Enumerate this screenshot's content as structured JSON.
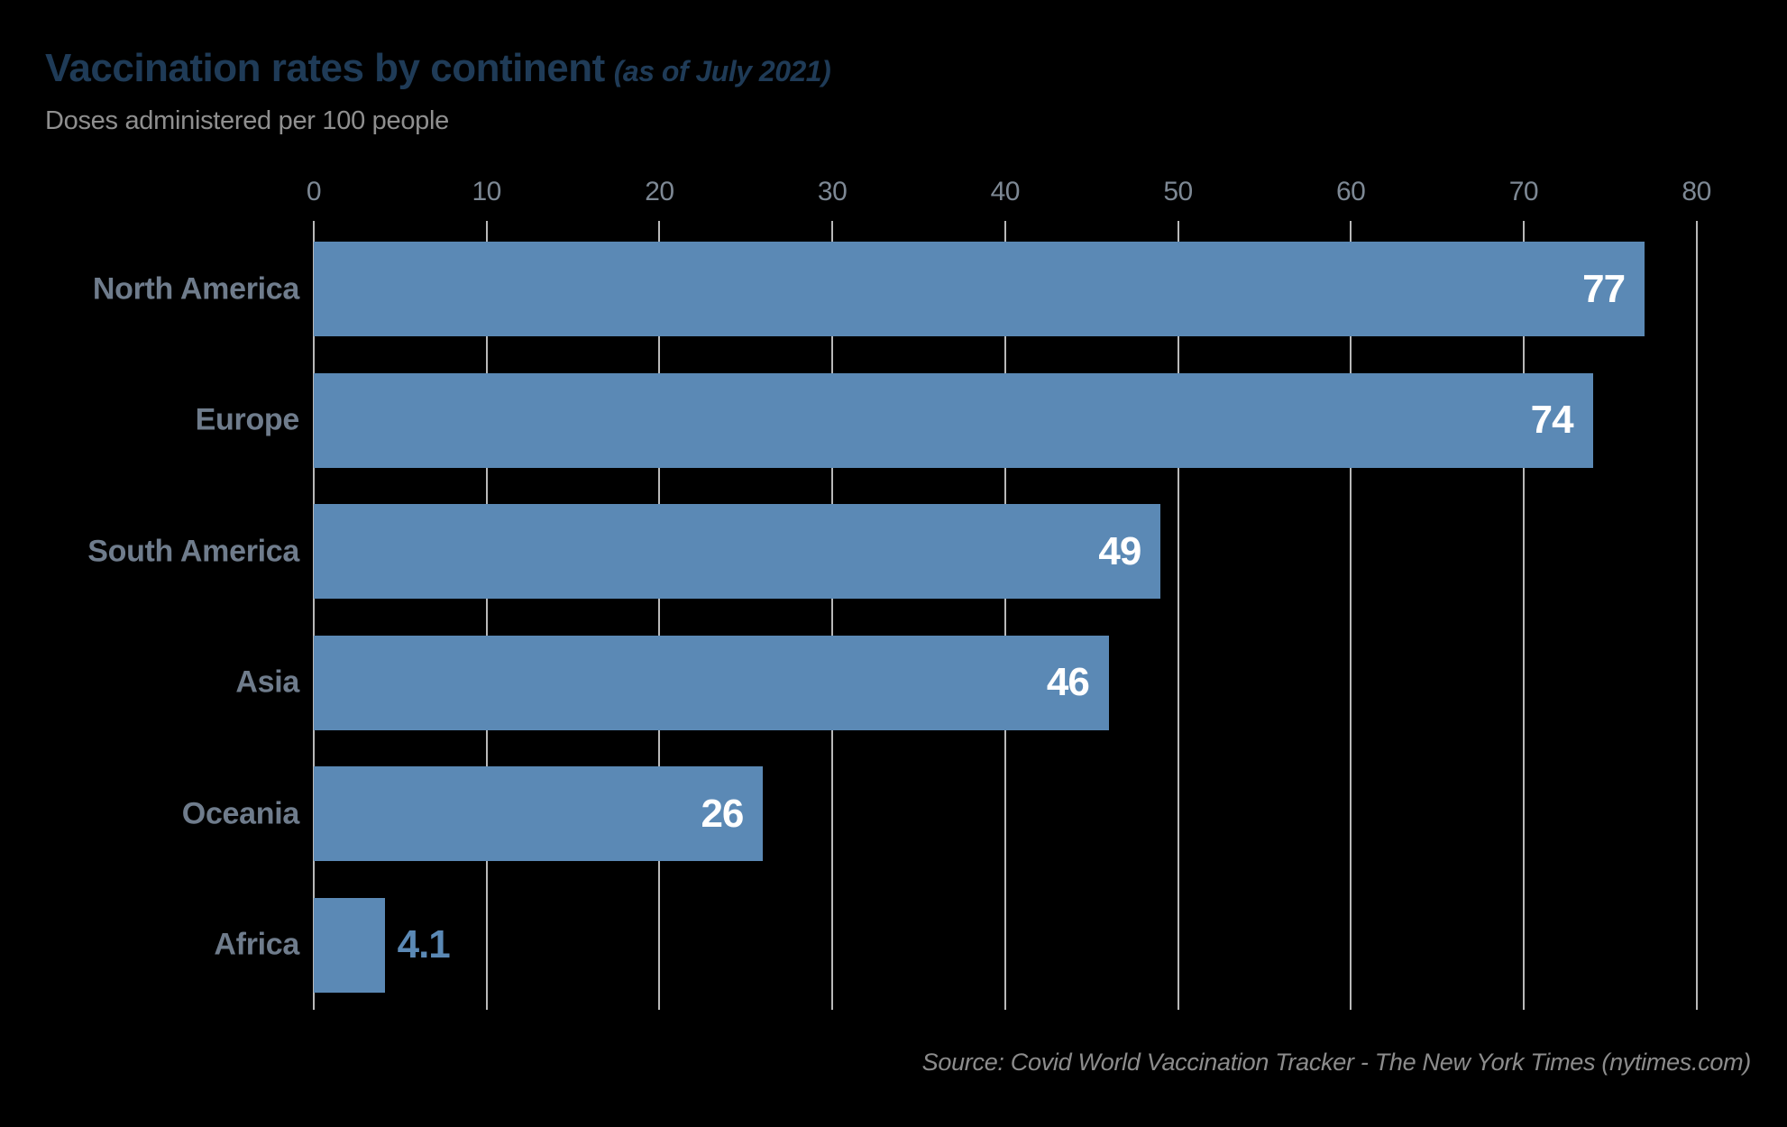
{
  "header": {
    "title": "Vaccination rates by continent",
    "title_suffix": "(as of July 2021)",
    "subtitle": "Doses administered per 100 people"
  },
  "footer": {
    "source": "Source: Covid World Vaccination Tracker - The New York Times (nytimes.com)"
  },
  "colors": {
    "background": "#000000",
    "bar": "#5b89b5",
    "title": "#1f3b57",
    "subtitle": "#8f8f8f",
    "category_label": "#6f7c8c",
    "tick_label": "#7d8894",
    "gridline": "#b9b9b9",
    "value_label_inside": "#ffffff",
    "value_label_outside": "#5b89b5",
    "source_text": "#8c8c8c"
  },
  "chart_data": {
    "type": "bar",
    "orientation": "horizontal",
    "title": "Vaccination rates by continent (as of July 2021)",
    "subtitle": "Doses administered per 100 people",
    "categories": [
      "North America",
      "Europe",
      "South America",
      "Asia",
      "Oceania",
      "Africa"
    ],
    "values": [
      77,
      74,
      49,
      46,
      26,
      4.1
    ],
    "value_labels": [
      "77",
      "74",
      "49",
      "46",
      "26",
      "4.1"
    ],
    "xlabel": "",
    "ylabel": "",
    "xlim": [
      0,
      80
    ],
    "xticks": [
      0,
      10,
      20,
      30,
      40,
      50,
      60,
      70,
      80
    ],
    "grid": true,
    "legend": false,
    "sort_order": "descending"
  }
}
